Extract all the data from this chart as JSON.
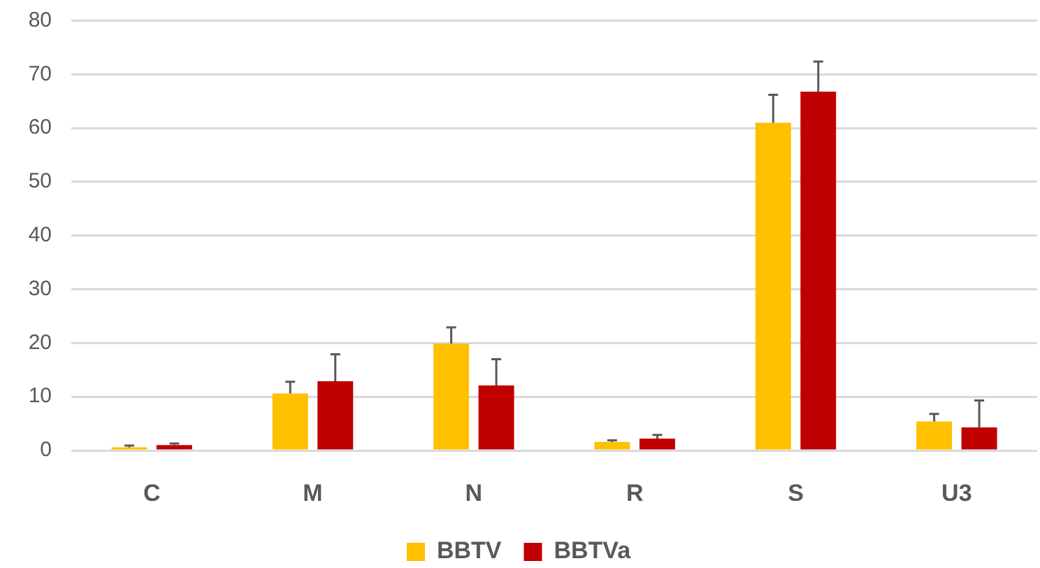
{
  "chart_data": {
    "type": "bar",
    "categories": [
      "C",
      "M",
      "N",
      "R",
      "S",
      "U3"
    ],
    "series": [
      {
        "name": "BBTV",
        "color": "#ffc000",
        "values": [
          0.6,
          10.6,
          19.9,
          1.6,
          61.0,
          5.4
        ],
        "errors": [
          [
            0.6,
            0.9
          ],
          [
            10.6,
            12.8
          ],
          [
            19.9,
            22.9
          ],
          [
            1.6,
            1.9
          ],
          [
            61.0,
            66.2
          ],
          [
            5.4,
            6.8
          ]
        ]
      },
      {
        "name": "BBTVa",
        "color": "#c00000",
        "values": [
          1.0,
          12.9,
          12.1,
          2.2,
          66.8,
          4.3
        ],
        "errors": [
          [
            1.0,
            1.3
          ],
          [
            12.9,
            17.9
          ],
          [
            12.1,
            17.0
          ],
          [
            2.2,
            2.9
          ],
          [
            66.8,
            72.4
          ],
          [
            4.3,
            9.3
          ]
        ]
      }
    ],
    "ylim": [
      0,
      80
    ],
    "yticks": [
      0,
      10,
      20,
      30,
      40,
      50,
      60,
      70,
      80
    ],
    "grid": "y",
    "legend": "bottom"
  }
}
